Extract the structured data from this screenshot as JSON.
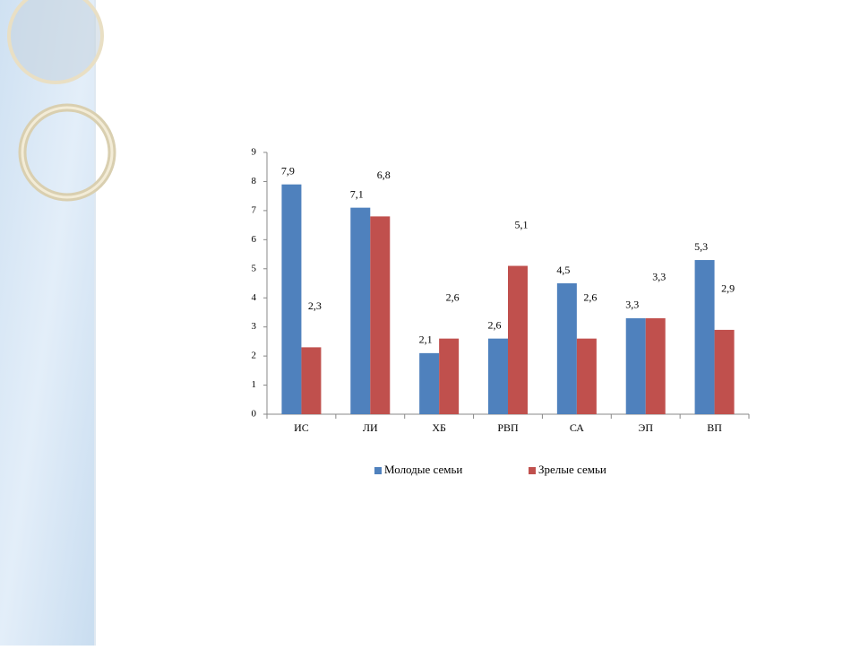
{
  "chart_data": {
    "type": "bar",
    "categories": [
      "ИС",
      "ЛИ",
      "ХБ",
      "РВП",
      "СА",
      "ЭП",
      "ВП"
    ],
    "series": [
      {
        "name": "Молодые семьи",
        "color": "#4f81bd",
        "values": [
          7.9,
          7.1,
          2.1,
          2.6,
          4.5,
          3.3,
          5.3
        ],
        "value_labels": [
          "7,9",
          "7,1",
          "2,1",
          "2,6",
          "4,5",
          "3,3",
          "5,3"
        ]
      },
      {
        "name": "Зрелые семьи",
        "color": "#c0504d",
        "values": [
          2.3,
          6.8,
          2.6,
          5.1,
          2.6,
          3.3,
          2.9
        ],
        "value_labels": [
          "2,3",
          "6,8",
          "2,6",
          "5,1",
          "2,6",
          "3,3",
          "2,9"
        ]
      }
    ],
    "ylim": [
      0,
      9
    ],
    "yticks": [
      0,
      1,
      2,
      3,
      4,
      5,
      6,
      7,
      8,
      9
    ],
    "grid": false,
    "legend": "bottom"
  }
}
